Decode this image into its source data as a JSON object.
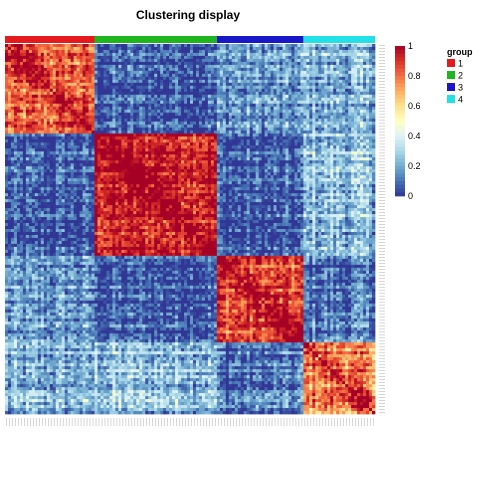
{
  "chart_data": {
    "type": "heatmap",
    "title": "Clustering display",
    "n_samples": 124,
    "groups": [
      {
        "id": "1",
        "count": 30,
        "color": "#e41a1c"
      },
      {
        "id": "2",
        "count": 41,
        "color": "#1fb51f"
      },
      {
        "id": "3",
        "count": 29,
        "color": "#1818c8"
      },
      {
        "id": "4",
        "count": 24,
        "color": "#22e0e8"
      }
    ],
    "within_group_mean": [
      0.8,
      0.95,
      0.85,
      0.75
    ],
    "between_group_mean": [
      [
        0.8,
        0.05,
        0.15,
        0.2
      ],
      [
        0.05,
        0.95,
        0.05,
        0.25
      ],
      [
        0.15,
        0.05,
        0.85,
        0.1
      ],
      [
        0.2,
        0.25,
        0.1,
        0.75
      ]
    ],
    "value_range": [
      0,
      1
    ],
    "colorbar": {
      "ticks": [
        "0",
        "0.2",
        "0.4",
        "0.6",
        "0.8",
        "1"
      ],
      "colors": [
        "#313695",
        "#4575b4",
        "#74add1",
        "#abd9e9",
        "#e0f3f8",
        "#ffffbf",
        "#fee090",
        "#fdae61",
        "#f46d43",
        "#d73027",
        "#a50026"
      ]
    },
    "legend": {
      "title": "group",
      "labels": [
        "1",
        "2",
        "3",
        "4"
      ],
      "placement": "right"
    }
  }
}
